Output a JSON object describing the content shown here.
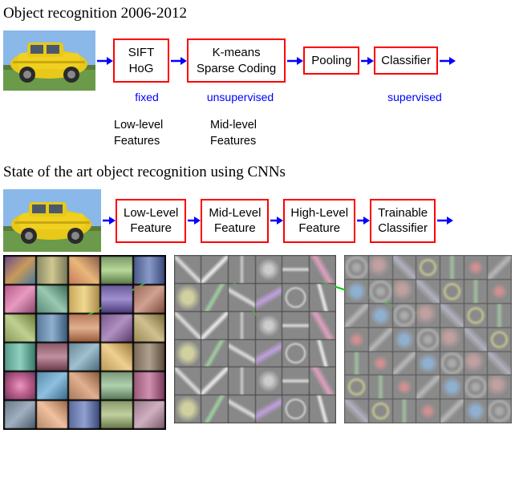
{
  "section1": {
    "title": "Object recognition 2006-2012",
    "boxes": [
      {
        "lines": [
          "SIFT",
          "HoG"
        ],
        "sub": "fixed"
      },
      {
        "lines": [
          "K-means",
          "Sparse Coding"
        ],
        "sub": "unsupervised"
      },
      {
        "lines": [
          "Pooling"
        ],
        "sub": ""
      },
      {
        "lines": [
          "Classifier"
        ],
        "sub": "supervised"
      }
    ],
    "feat_labels": [
      "Low-level\nFeatures",
      "Mid-level\nFeatures"
    ],
    "arrow_color": "#0000ff",
    "box_border": "#ff0000"
  },
  "section2": {
    "title": "State of the art object recognition using CNNs",
    "boxes": [
      {
        "lines": [
          "Low-Level",
          "Feature"
        ]
      },
      {
        "lines": [
          "Mid-Level",
          "Feature"
        ]
      },
      {
        "lines": [
          "High-Level",
          "Feature"
        ]
      },
      {
        "lines": [
          "Trainable",
          "Classifier"
        ]
      }
    ],
    "arrow_color": "#0000ff",
    "box_border": "#ff0000",
    "connector_color": "#00cc00"
  },
  "viz": {
    "grid1": {
      "rows": 6,
      "cols": 5,
      "cells": [
        "linear-gradient(135deg,#6b4a8a,#c89a5a,#4a7a9a)",
        "linear-gradient(90deg,#8a8a6a,#d0c890,#7a7a5a)",
        "linear-gradient(45deg,#c87a5a,#e8b87a,#8a5a4a)",
        "linear-gradient(180deg,#7a9a6a,#b8d89a,#5a7a4a)",
        "linear-gradient(90deg,#4a5a8a,#8a9ac8,#3a4a7a)",
        "linear-gradient(135deg,#b85a8a,#e89ac0,#8a4a6a)",
        "linear-gradient(45deg,#5a8a7a,#9ac8b0,#3a6a5a)",
        "linear-gradient(90deg,#c8a85a,#f0d890,#a88a4a)",
        "linear-gradient(180deg,#6a5a9a,#a090d0,#4a3a7a)",
        "linear-gradient(135deg,#9a6a5a,#d0a090,#7a4a3a)",
        "linear-gradient(45deg,#8a9a5a,#c0d090,#6a7a3a)",
        "linear-gradient(90deg,#5a7a9a,#90b0d0,#3a5a7a)",
        "linear-gradient(180deg,#b87a5a,#e0b090,#9a5a3a)",
        "linear-gradient(135deg,#7a5a8a,#b090c0,#5a3a6a)",
        "linear-gradient(45deg,#9a8a5a,#d0c090,#7a6a3a)",
        "linear-gradient(90deg,#5a9a8a,#90d0c0,#3a7a6a)",
        "linear-gradient(180deg,#8a5a6a,#c090a0,#6a3a4a)",
        "linear-gradient(135deg,#6a8a9a,#a0c0d0,#4a6a7a)",
        "linear-gradient(45deg,#b89a5a,#f0d090,#9a7a3a)",
        "linear-gradient(90deg,#7a6a5a,#b0a090,#5a4a3a)",
        "radial-gradient(circle,#e89ac0,#b85a8a,#6a3a5a)",
        "linear-gradient(135deg,#5a8aa8,#90c0e0,#3a6a88)",
        "linear-gradient(45deg,#a87a5a,#e0b090,#8a5a3a)",
        "linear-gradient(180deg,#7a9a7a,#b0d0b0,#5a7a5a)",
        "linear-gradient(90deg,#9a5a7a,#d090b0,#7a3a5a)",
        "linear-gradient(135deg,#6a7a8a,#a0b0c0,#4a5a6a)",
        "linear-gradient(45deg,#b88a6a,#f0c0a0,#9a6a4a)",
        "linear-gradient(90deg,#5a6a9a,#90a0d0,#3a4a7a)",
        "linear-gradient(180deg,#8a9a6a,#c0d0a0,#6a7a4a)",
        "linear-gradient(135deg,#9a7a8a,#d0b0c0,#7a5a6a)"
      ]
    },
    "grid2": {
      "rows": 6,
      "cols": 6,
      "base": "#888888",
      "patterns": [
        "linear-gradient(45deg,#888 40%,#ddd 50%,#888 60%)",
        "linear-gradient(135deg,#888 40%,#eee 50%,#888 60%)",
        "linear-gradient(90deg,#888 40%,#ccc 50%,#888 60%)",
        "radial-gradient(circle,#ccc 20%,#888 60%)",
        "linear-gradient(0deg,#888 40%,#ddd 50%,#888 60%)",
        "linear-gradient(60deg,#888 35%,#e0a0c0 50%,#888 65%)",
        "radial-gradient(ellipse,#d0d0a0 30%,#888 70%)",
        "linear-gradient(120deg,#888 40%,#a0d0a0 50%,#888 60%)",
        "linear-gradient(30deg,#888 40%,#ddd 50%,#888 60%)",
        "linear-gradient(150deg,#888 35%,#c0a0e0 50%,#888 65%)",
        "radial-gradient(circle,#888 40%,#ccc 50%,#888 60%)",
        "linear-gradient(75deg,#888 40%,#eee 50%,#888 60%)"
      ]
    },
    "grid3": {
      "rows": 7,
      "cols": 7,
      "base": "#8a8a8a",
      "patterns": [
        "radial-gradient(circle,#aaa 15%,#8a8a8a 40%,#aaa 60%,#8a8a8a 80%)",
        "radial-gradient(ellipse at 40% 40%,#c0a0a0 20%,#8a8a8a 60%)",
        "linear-gradient(45deg,#8a8a8a 30%,#b0b0c0 50%,#8a8a8a 70%)",
        "radial-gradient(circle,#8a8a8a 30%,#c0c090 45%,#8a8a8a 60%)",
        "linear-gradient(90deg,#8a8a8a 35%,#a0c0a0 50%,#8a8a8a 65%)",
        "radial-gradient(circle at 50% 50%,#d09090 15%,#8a8a8a 50%)",
        "linear-gradient(135deg,#8a8a8a 35%,#b8b8b8 50%,#8a8a8a 65%)",
        "radial-gradient(ellipse,#90b0d0 25%,#8a8a8a 65%)"
      ]
    }
  }
}
